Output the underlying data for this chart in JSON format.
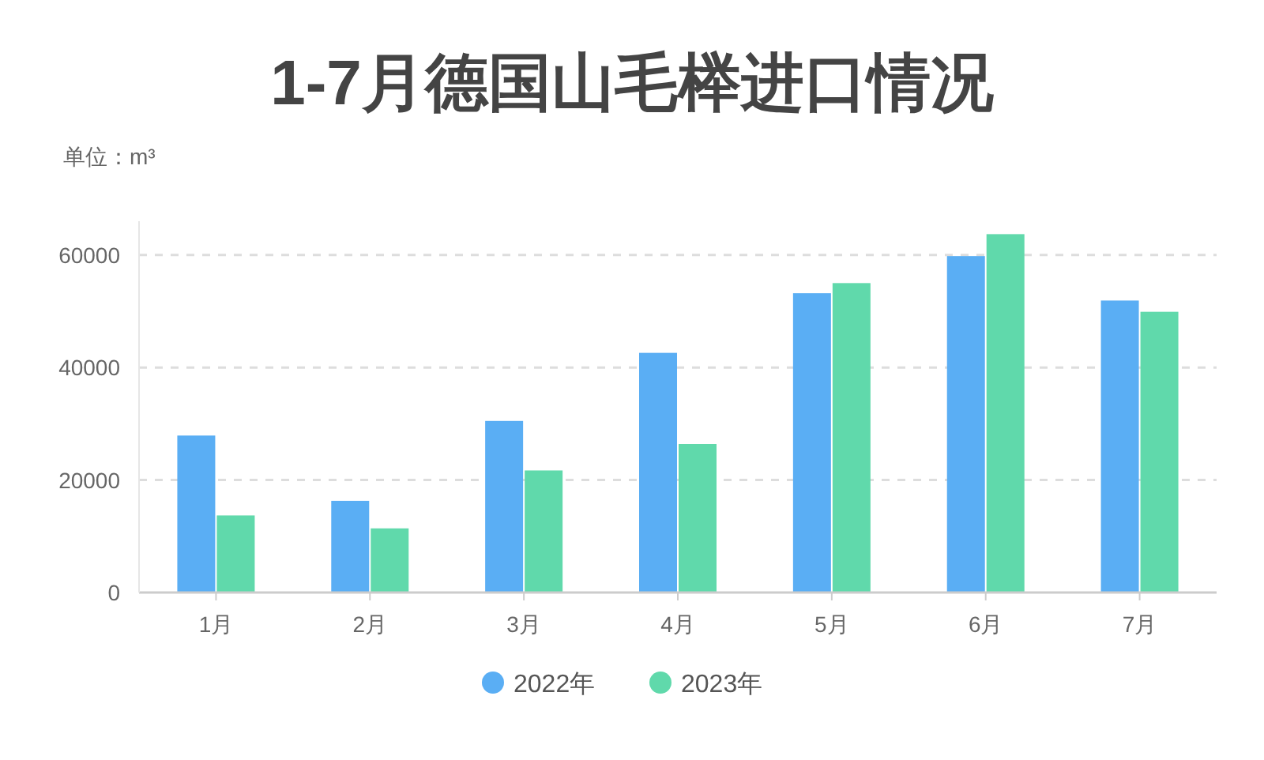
{
  "chart_data": {
    "type": "bar",
    "title": "1-7月德国山毛榉进口情况",
    "subtitle": "单位：m³",
    "categories": [
      "1月",
      "2月",
      "3月",
      "4月",
      "5月",
      "6月",
      "7月"
    ],
    "series": [
      {
        "name": "2022年",
        "color": "#5aaef4",
        "values": [
          27900,
          16300,
          30500,
          42600,
          53200,
          59800,
          51900
        ]
      },
      {
        "name": "2023年",
        "color": "#60d9ab",
        "values": [
          13700,
          11400,
          21700,
          26400,
          55000,
          63700,
          49900
        ]
      }
    ],
    "ylim": [
      0,
      66000
    ],
    "yticks": [
      0,
      20000,
      40000,
      60000
    ],
    "grid": "y",
    "legend": "bottom"
  }
}
